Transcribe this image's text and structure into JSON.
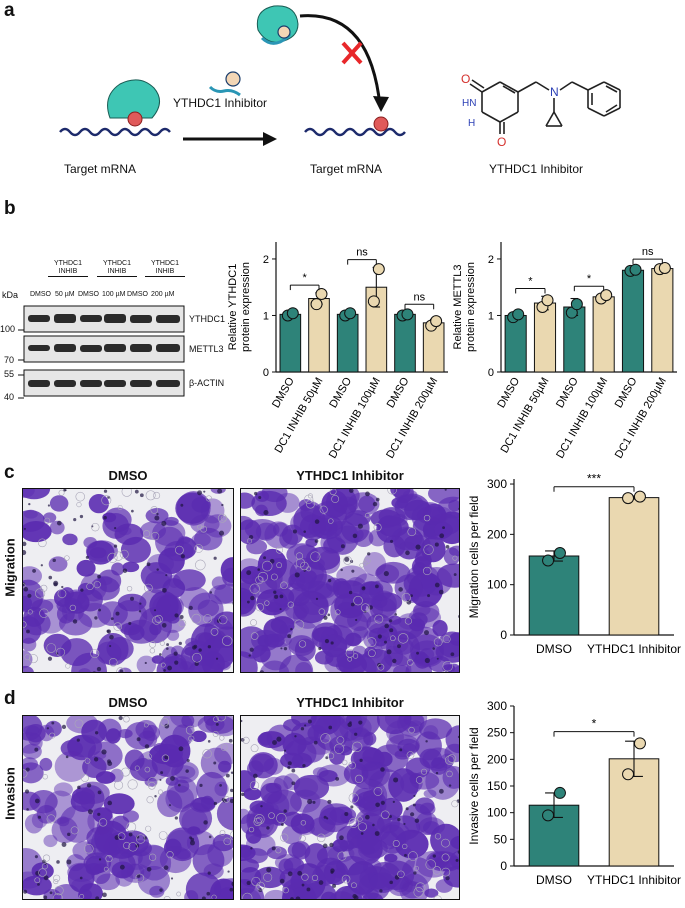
{
  "panels": {
    "a": "a",
    "b": "b",
    "c": "c",
    "d": "d"
  },
  "schematic": {
    "target_mrna_left": "Target mRNA",
    "target_mrna_right": "Target mRNA",
    "inhibitor_label": "YTHDC1 Inhibitor",
    "structure_caption": "YTHDC1 Inhibitor",
    "atoms": {
      "o_top": "O",
      "o_bottom": "O",
      "n_ring": "N",
      "n_chain": "N",
      "h_top": "H",
      "h_bottom": "H"
    },
    "colors": {
      "protein": "#3ec6b4",
      "methyl": "#e05a5a",
      "rna": "#1d2a6b",
      "inhibitor_head": "#f3d6b5",
      "inhibitor_tail": "#2a96b5",
      "block_x": "#e8272a",
      "heteroatom_o": "#d4302c",
      "heteroatom_n": "#2b3fb5"
    }
  },
  "western": {
    "kda_label": "kDa",
    "group_labels": [
      "YTHDC1\nINHIB",
      "YTHDC1\nINHIB",
      "YTHDC1\nINHIB"
    ],
    "lane_labels": [
      "DMSO",
      "50 µM",
      "DMSO",
      "100 µM",
      "DMSO",
      "200 µM"
    ],
    "markers": [
      "100",
      "70",
      "55",
      "40"
    ],
    "rows": [
      "YTHDC1",
      "METTL3",
      "β-ACTIN"
    ]
  },
  "chart_data": [
    {
      "type": "bar",
      "ylabel": "Relative YTHDC1\nprotein expression",
      "categories": [
        "DMSO",
        "DC1 INHIB 50µM",
        "DMSO",
        "DC1 INHIB 100µM",
        "DMSO",
        "DC1 INHIB 200µM"
      ],
      "values": [
        1.02,
        1.3,
        1.02,
        1.5,
        1.02,
        0.87
      ],
      "errors": [
        0.02,
        0.1,
        0.02,
        0.35,
        0.04,
        0.06
      ],
      "points": [
        [
          1.0,
          1.04
        ],
        [
          1.2,
          1.38
        ],
        [
          1.0,
          1.04
        ],
        [
          1.25,
          1.82
        ],
        [
          1.0,
          1.02
        ],
        [
          0.82,
          0.9
        ]
      ],
      "ylim": [
        0,
        2.3
      ],
      "yticks": [
        0,
        1,
        2
      ],
      "significance": [
        {
          "pair": [
            0,
            1
          ],
          "label": "*"
        },
        {
          "pair": [
            2,
            3
          ],
          "label": "ns"
        },
        {
          "pair": [
            4,
            5
          ],
          "label": "ns"
        }
      ]
    },
    {
      "type": "bar",
      "ylabel": "Relative METTL3\nprotein expression",
      "categories": [
        "DMSO",
        "DC1 INHIB 50µM",
        "DMSO",
        "DC1 INHIB 100µM",
        "DMSO",
        "DC1 INHIB 200µM"
      ],
      "values": [
        1.0,
        1.22,
        1.15,
        1.33,
        1.8,
        1.83
      ],
      "errors": [
        0.03,
        0.12,
        0.15,
        0.05,
        0.04,
        0.03
      ],
      "points": [
        [
          0.97,
          1.02
        ],
        [
          1.15,
          1.27
        ],
        [
          1.05,
          1.2
        ],
        [
          1.3,
          1.36
        ],
        [
          1.79,
          1.81
        ],
        [
          1.82,
          1.84
        ]
      ],
      "ylim": [
        0,
        2.3
      ],
      "yticks": [
        0,
        1,
        2
      ],
      "significance": [
        {
          "pair": [
            0,
            1
          ],
          "label": "*"
        },
        {
          "pair": [
            2,
            3
          ],
          "label": "*"
        },
        {
          "pair": [
            4,
            5
          ],
          "label": "ns"
        }
      ]
    },
    {
      "type": "bar",
      "ylabel": "Migration cells per field",
      "categories": [
        "DMSO",
        "YTHDC1 Inhibitor"
      ],
      "values": [
        157,
        273
      ],
      "errors": [
        10,
        3
      ],
      "points": [
        [
          148,
          163
        ],
        [
          272,
          275
        ]
      ],
      "ylim": [
        0,
        310
      ],
      "yticks": [
        0,
        100,
        200,
        300
      ],
      "significance": [
        {
          "pair": [
            0,
            1
          ],
          "label": "***"
        }
      ]
    },
    {
      "type": "bar",
      "ylabel": "Invasive cells per field",
      "categories": [
        "DMSO",
        "YTHDC1 Inhibitor"
      ],
      "values": [
        114,
        201
      ],
      "errors": [
        23,
        33
      ],
      "points": [
        [
          95,
          137
        ],
        [
          172,
          230
        ]
      ],
      "ylim": [
        0,
        300
      ],
      "yticks": [
        0,
        50,
        100,
        150,
        200,
        250,
        300
      ],
      "significance": [
        {
          "pair": [
            0,
            1
          ],
          "label": "*"
        }
      ]
    }
  ],
  "micrographs": {
    "c": {
      "row_label": "Migration",
      "left": "DMSO",
      "right": "YTHDC1 Inhibitor"
    },
    "d": {
      "row_label": "Invasion",
      "left": "DMSO",
      "right": "YTHDC1 Inhibitor"
    },
    "stain_color": "#5a2bb0"
  },
  "bar_colors": {
    "dmso": "#2e8379",
    "inhib": "#ead8b0"
  }
}
